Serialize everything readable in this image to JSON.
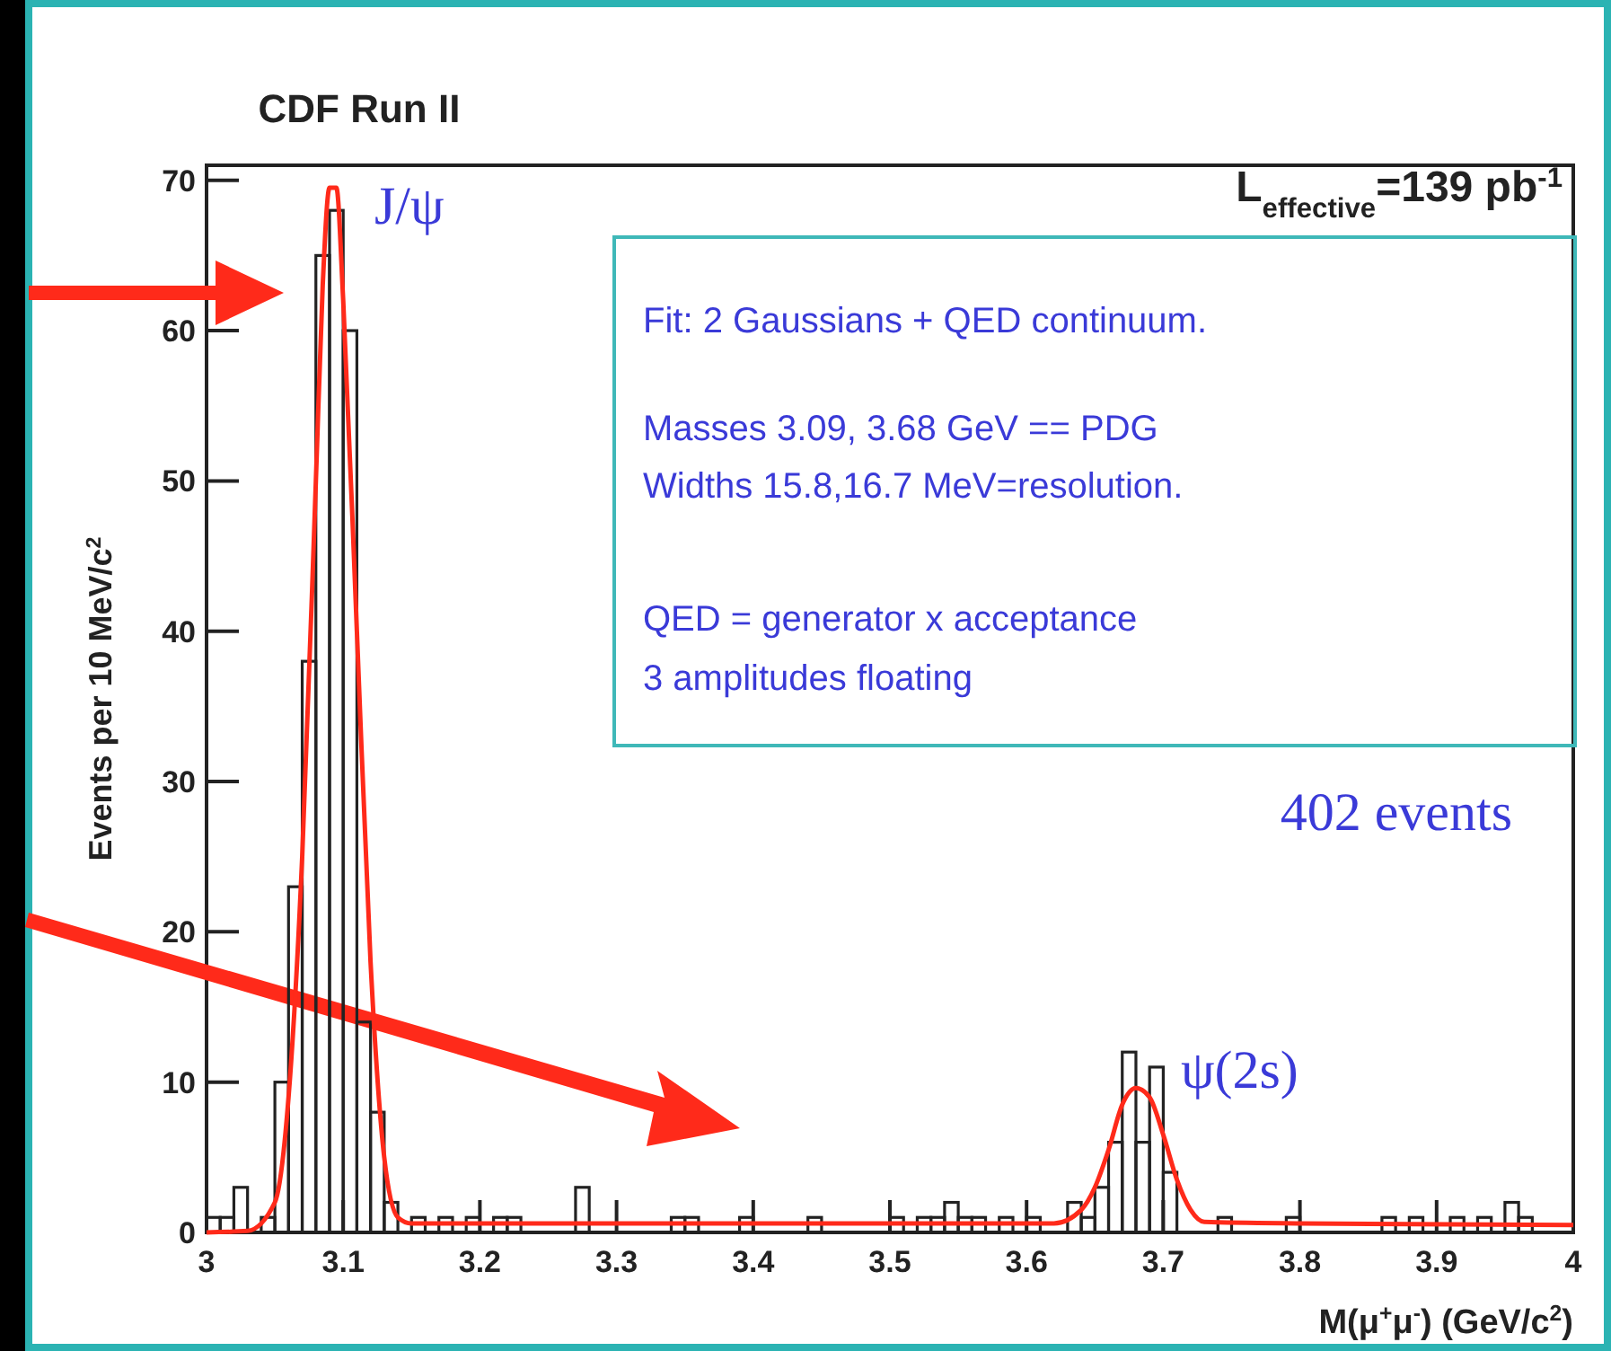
{
  "chart_data": {
    "type": "histogram",
    "title": "CDF Run II",
    "xlabel": "M(μ$^{+}$μ$^{-}$) (GeV/c$^{2}$)",
    "ylabel": "Events per 10 MeV/c$^{2}$",
    "bins": [
      3,
      3.01,
      3.02,
      3.03,
      3.04,
      3.05,
      3.06,
      3.07,
      3.08,
      3.09,
      3.1,
      3.11,
      3.12,
      3.13,
      3.14,
      3.15,
      3.16,
      3.17,
      3.18,
      3.19,
      3.2,
      3.21,
      3.22,
      3.23,
      3.24,
      3.25,
      3.26,
      3.27,
      3.28,
      3.29,
      3.3,
      3.31,
      3.32,
      3.33,
      3.34,
      3.35,
      3.36,
      3.37,
      3.38,
      3.39,
      3.4,
      3.41,
      3.42,
      3.43,
      3.44,
      3.45,
      3.46,
      3.47,
      3.48,
      3.49,
      3.5,
      3.51,
      3.52,
      3.53,
      3.54,
      3.55,
      3.56,
      3.57,
      3.58,
      3.59,
      3.6,
      3.61,
      3.62,
      3.63,
      3.64,
      3.65,
      3.66,
      3.67,
      3.68,
      3.69,
      3.7,
      3.71,
      3.72,
      3.73,
      3.74,
      3.75,
      3.76,
      3.77,
      3.78,
      3.79,
      3.8,
      3.81,
      3.82,
      3.83,
      3.84,
      3.85,
      3.86,
      3.87,
      3.88,
      3.89,
      3.9,
      3.91,
      3.92,
      3.93,
      3.94,
      3.95,
      3.96,
      3.97,
      3.98,
      3.99,
      4
    ],
    "series": [
      {
        "type": "histogram",
        "color": "#222222",
        "values": [
          1,
          1,
          3,
          0,
          1,
          10,
          23,
          38,
          65,
          68,
          60,
          14,
          8,
          2,
          0,
          1,
          0,
          1,
          0,
          1,
          0,
          1,
          1,
          0,
          0,
          0,
          0,
          3,
          0,
          0,
          0,
          0,
          0,
          0,
          1,
          1,
          0,
          0,
          0,
          1,
          0,
          0,
          0,
          0,
          1,
          0,
          0,
          0,
          0,
          0,
          1,
          0,
          1,
          1,
          2,
          1,
          1,
          0,
          1,
          0,
          1,
          0,
          0,
          2,
          1,
          3,
          6,
          12,
          6,
          11,
          4,
          0,
          0,
          0,
          1,
          0,
          0,
          0,
          0,
          1,
          0,
          0,
          0,
          0,
          0,
          0,
          1,
          0,
          1,
          0,
          0,
          1,
          0,
          1,
          0,
          2,
          1,
          0,
          0,
          0
        ]
      },
      {
        "type": "line",
        "color": "#ff2a1a",
        "x": [
          3,
          3.03,
          3.05,
          3.06,
          3.07,
          3.08,
          3.085,
          3.09,
          3.095,
          3.1,
          3.11,
          3.12,
          3.13,
          3.14,
          3.15,
          3.3,
          3.5,
          3.62,
          3.64,
          3.65,
          3.66,
          3.67,
          3.68,
          3.69,
          3.7,
          3.71,
          3.72,
          3.73,
          3.8,
          4
        ],
        "values": [
          0,
          0.1,
          2,
          9,
          25,
          50,
          63,
          69.5,
          69.5,
          62,
          40,
          18,
          5,
          1,
          0.6,
          0.6,
          0.6,
          0.6,
          1.5,
          3,
          5.5,
          8.5,
          9.6,
          9,
          6.5,
          3.5,
          1.5,
          0.7,
          0.6,
          0.5
        ]
      }
    ],
    "xlim": [
      3,
      4
    ],
    "xticks": [
      3,
      3.1,
      3.2,
      3.3,
      3.4,
      3.5,
      3.6,
      3.7,
      3.8,
      3.9,
      4
    ],
    "ylim": [
      0,
      71
    ],
    "yticks": [
      0,
      10,
      20,
      30,
      40,
      50,
      60,
      70
    ],
    "annotations": [
      "L$_{effective}$=139 pb$^{-1}$",
      "Fit: 2 Gaussians + QED continuum.",
      "Masses 3.09, 3.68 GeV == PDG",
      "Widths 15.8,16.7 MeV=resolution.",
      "QED = generator x acceptance",
      "3 amplitudes floating",
      "402 events",
      {
        "text": "J/ψ",
        "x": 3.09,
        "y": 69.5
      },
      {
        "text": "ψ(2s)",
        "x": 3.68,
        "y": 12
      }
    ],
    "grid": false
  }
}
